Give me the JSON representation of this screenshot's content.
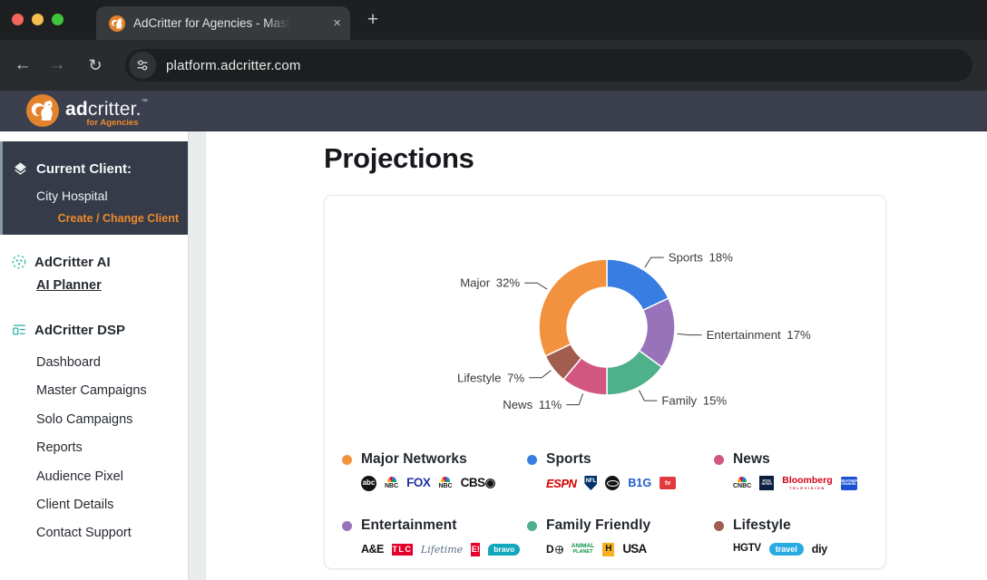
{
  "browser": {
    "tab_title": "AdCritter for Agencies - Mast",
    "url": "platform.adcritter.com"
  },
  "header": {
    "brand_bold": "ad",
    "brand_rest": "critter.",
    "trademark": "™",
    "tagline": "for Agencies"
  },
  "colors": {
    "accent_orange": "#ed8a2d",
    "teal": "#27b1a3",
    "header_bg": "#3b3f4e",
    "client_box_bg": "#353b49"
  },
  "sidebar": {
    "current_client_label": "Current Client:",
    "current_client_name": "City Hospital",
    "change_client_link": "Create / Change Client",
    "sections": [
      {
        "label": "AdCritter AI",
        "items": [
          {
            "label": "AI Planner",
            "emphasis": true
          }
        ]
      },
      {
        "label": "AdCritter DSP",
        "items": [
          {
            "label": "Dashboard"
          },
          {
            "label": "Master Campaigns"
          },
          {
            "label": "Solo Campaigns"
          },
          {
            "label": "Reports"
          },
          {
            "label": "Audience Pixel"
          },
          {
            "label": "Client Details"
          },
          {
            "label": "Contact Support"
          }
        ]
      }
    ]
  },
  "main": {
    "title": "Projections"
  },
  "chart_data": {
    "type": "pie",
    "donut": true,
    "title": "Projections",
    "legend_position": "bottom",
    "label_format": "{name} {value}%",
    "series": [
      {
        "name": "Sports",
        "value": 18,
        "color": "#377de2"
      },
      {
        "name": "Entertainment",
        "value": 17,
        "color": "#9873b9"
      },
      {
        "name": "Family",
        "value": 15,
        "color": "#4fb08c"
      },
      {
        "name": "News",
        "value": 11,
        "color": "#d25680"
      },
      {
        "name": "Lifestyle",
        "value": 7,
        "color": "#a15d4f"
      },
      {
        "name": "Major",
        "value": 32,
        "color": "#f2923e"
      }
    ]
  },
  "legend": {
    "items": [
      {
        "label": "Major Networks",
        "color": "#f2923e",
        "logos": [
          {
            "name": "ABC",
            "style": "abc",
            "text": "abc"
          },
          {
            "name": "NBC",
            "style": "nbc",
            "text": "NBC",
            "peacock": true
          },
          {
            "name": "FOX",
            "style": "fox",
            "text": "FOX"
          },
          {
            "name": "NBC",
            "style": "nbc",
            "text": "NBC",
            "peacock": true
          },
          {
            "name": "CBS",
            "style": "cbs",
            "text": "CBS◉"
          }
        ]
      },
      {
        "label": "Sports",
        "color": "#377de2",
        "logos": [
          {
            "name": "ESPN",
            "style": "espn",
            "text": "ESPN"
          },
          {
            "name": "NFL Network",
            "style": "nfl",
            "text": "NFL"
          },
          {
            "name": "FS1",
            "style": "fs1",
            "text": ""
          },
          {
            "name": "Big Ten Network",
            "style": "b1g",
            "text": "B1G"
          },
          {
            "name": "NBA TV",
            "style": "nbatv",
            "text": "tv"
          }
        ]
      },
      {
        "label": "News",
        "color": "#d25680",
        "logos": [
          {
            "name": "CNBC",
            "style": "cnbc",
            "text": "CNBC",
            "peacock": true
          },
          {
            "name": "FOX News",
            "style": "foxnews",
            "text": "FOX",
            "sub": "NEWS"
          },
          {
            "name": "Bloomberg Television",
            "style": "bloomberg",
            "text": "Bloomberg",
            "sub": "TELEVISION"
          },
          {
            "name": "The Weather Channel",
            "style": "twc",
            "text": "WEATHER",
            "sub": "CHANNEL"
          }
        ]
      },
      {
        "label": "Entertainment",
        "color": "#9873b9",
        "logos": [
          {
            "name": "A&E",
            "style": "ae",
            "text": "A&E"
          },
          {
            "name": "TLC",
            "style": "tlc",
            "text": "TLC"
          },
          {
            "name": "Lifetime",
            "style": "lifetime",
            "text": "Lifetime"
          },
          {
            "name": "E!",
            "style": "enet",
            "text": "E!"
          },
          {
            "name": "Bravo",
            "style": "bravo",
            "text": "bravo"
          }
        ]
      },
      {
        "label": "Family Friendly",
        "color": "#4fb08c",
        "logos": [
          {
            "name": "Discovery",
            "style": "discovery",
            "text": "D",
            "globe": true
          },
          {
            "name": "Animal Planet",
            "style": "animalplanet",
            "text": "ANIMAL",
            "sub": "PLANET"
          },
          {
            "name": "History",
            "style": "history",
            "text": "H"
          },
          {
            "name": "USA",
            "style": "usa",
            "text": "USA"
          }
        ]
      },
      {
        "label": "Lifestyle",
        "color": "#a15d4f",
        "logos": [
          {
            "name": "HGTV",
            "style": "hgtv",
            "text": "HGTV"
          },
          {
            "name": "Travel Channel",
            "style": "travel",
            "text": "travel"
          },
          {
            "name": "DIY Network",
            "style": "diy",
            "text": "diy"
          }
        ]
      }
    ]
  }
}
